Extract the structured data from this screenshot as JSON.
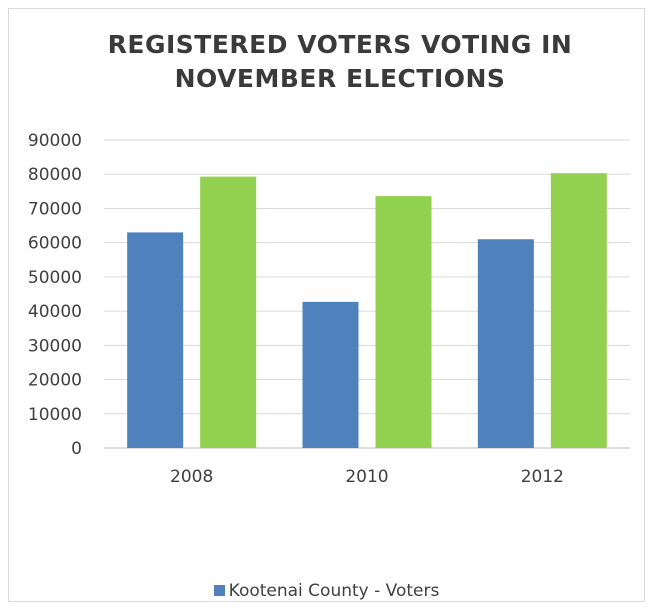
{
  "chart_data": {
    "type": "bar",
    "title": "REGISTERED VOTERS VOTING IN NOVEMBER ELECTIONS",
    "categories": [
      "2008",
      "2010",
      "2012"
    ],
    "series": [
      {
        "name": "Kootenai County - Voters",
        "values": [
          63000,
          42700,
          61000
        ],
        "color": "#4f81bd"
      },
      {
        "values": [
          79300,
          73600,
          80300
        ],
        "color": "#92d050"
      }
    ],
    "ylim": [
      0,
      90000
    ],
    "yticks": [
      0,
      10000,
      20000,
      30000,
      40000,
      50000,
      60000,
      70000,
      80000,
      90000
    ],
    "grid": true,
    "legend_position": "bottom"
  }
}
